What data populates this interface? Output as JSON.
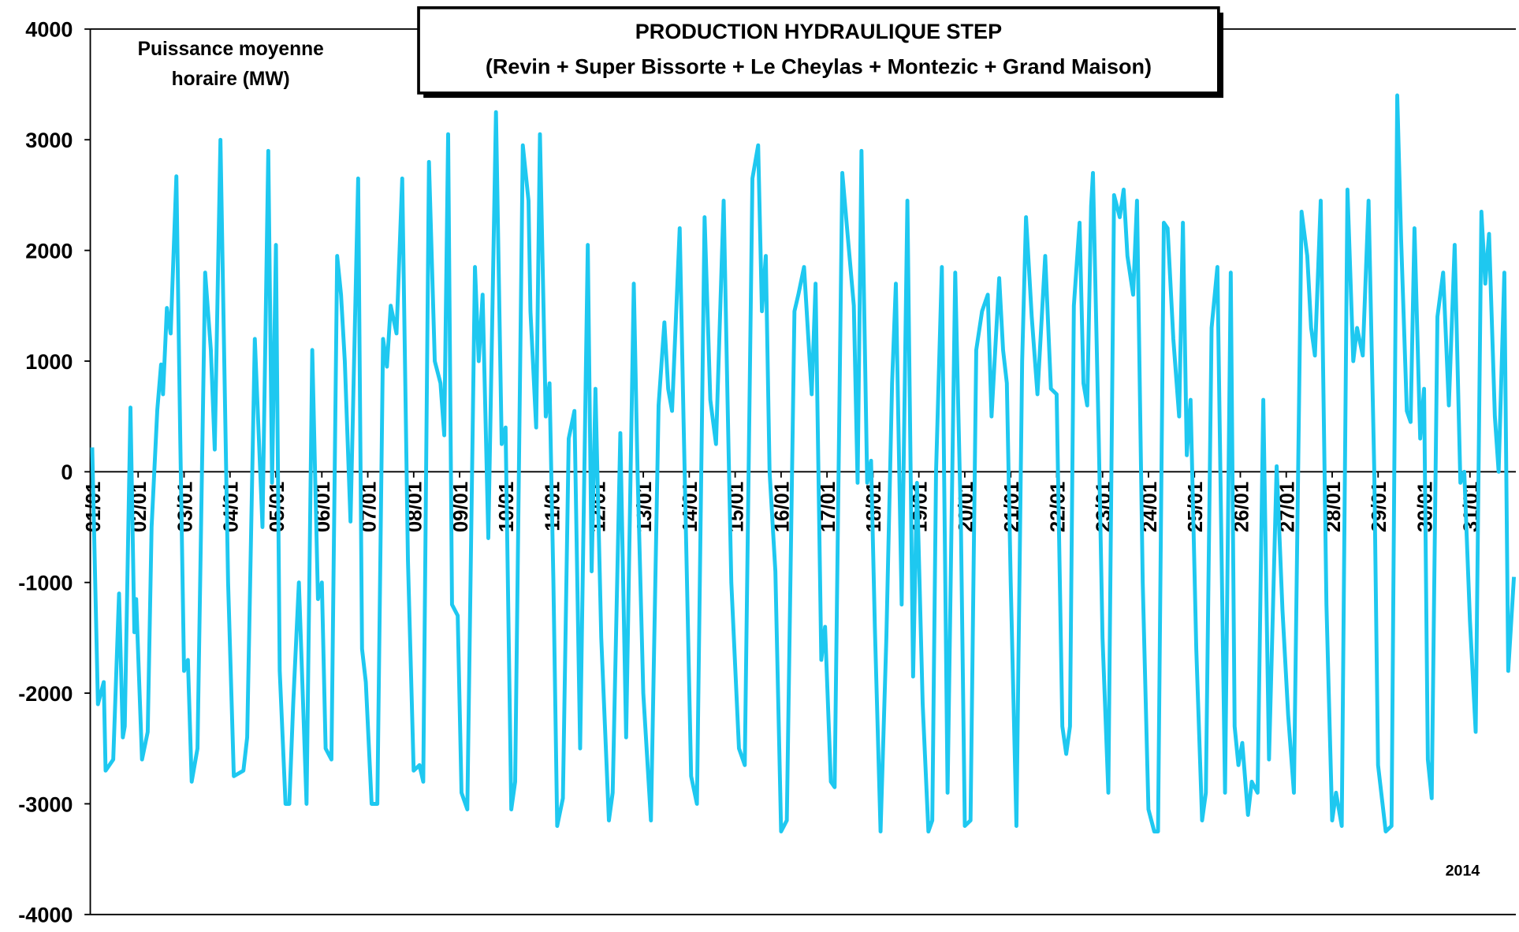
{
  "chart_data": {
    "type": "line",
    "title": "PRODUCTION HYDRAULIQUE STEP",
    "subtitle": "(Revin + Super Bissorte + Le Cheylas + Montezic + Grand Maison)",
    "ylabel_lines": [
      "Puissance moyenne",
      "horaire (MW)"
    ],
    "annotation": "2014",
    "xlim": [
      0,
      744
    ],
    "ylim": [
      -4000,
      4000
    ],
    "yticks": [
      -4000,
      -3000,
      -2000,
      -1000,
      0,
      1000,
      2000,
      3000,
      4000
    ],
    "xticks": [
      {
        "value": 0,
        "label": "01/01"
      },
      {
        "value": 24,
        "label": "02/01"
      },
      {
        "value": 48,
        "label": "03/01"
      },
      {
        "value": 72,
        "label": "04/01"
      },
      {
        "value": 96,
        "label": "05/01"
      },
      {
        "value": 120,
        "label": "06/01"
      },
      {
        "value": 144,
        "label": "07/01"
      },
      {
        "value": 168,
        "label": "08/01"
      },
      {
        "value": 192,
        "label": "09/01"
      },
      {
        "value": 216,
        "label": "10/01"
      },
      {
        "value": 240,
        "label": "11/01"
      },
      {
        "value": 264,
        "label": "12/01"
      },
      {
        "value": 288,
        "label": "13/01"
      },
      {
        "value": 312,
        "label": "14/01"
      },
      {
        "value": 336,
        "label": "15/01"
      },
      {
        "value": 360,
        "label": "16/01"
      },
      {
        "value": 384,
        "label": "17/01"
      },
      {
        "value": 408,
        "label": "18/01"
      },
      {
        "value": 432,
        "label": "19/01"
      },
      {
        "value": 456,
        "label": "20/01"
      },
      {
        "value": 480,
        "label": "21/01"
      },
      {
        "value": 504,
        "label": "22/01"
      },
      {
        "value": 528,
        "label": "23/01"
      },
      {
        "value": 552,
        "label": "24/01"
      },
      {
        "value": 576,
        "label": "25/01"
      },
      {
        "value": 600,
        "label": "26/01"
      },
      {
        "value": 624,
        "label": "27/01"
      },
      {
        "value": 648,
        "label": "28/01"
      },
      {
        "value": 672,
        "label": "29/01"
      },
      {
        "value": 696,
        "label": "30/01"
      },
      {
        "value": 720,
        "label": "31/01"
      }
    ],
    "grid": false,
    "series": [
      {
        "color": "#1ec8f0",
        "x": [
          0,
          3,
          6,
          7,
          11,
          14,
          16,
          17,
          20,
          22,
          23,
          26,
          29,
          31,
          34,
          36,
          37,
          39,
          41,
          44,
          46,
          48,
          50,
          52,
          55,
          59,
          62,
          64,
          67,
          71,
          74,
          79,
          81,
          85,
          89,
          92,
          94,
          96,
          98,
          101,
          103,
          105,
          108,
          112,
          115,
          118,
          120,
          122,
          125,
          128,
          130,
          132,
          135,
          139,
          141,
          143,
          146,
          149,
          152,
          154,
          156,
          159,
          162,
          165,
          168,
          171,
          173,
          176,
          179,
          182,
          184,
          186,
          188,
          191,
          193,
          196,
          200,
          202,
          204,
          207,
          211,
          214,
          216,
          219,
          221,
          225,
          228,
          229,
          232,
          234,
          237,
          239,
          241,
          243,
          246,
          249,
          252,
          255,
          259,
          261,
          263,
          266,
          270,
          272,
          276,
          279,
          283,
          285,
          288,
          292,
          296,
          299,
          301,
          303,
          307,
          309,
          313,
          316,
          320,
          323,
          326,
          330,
          332,
          334,
          338,
          341,
          345,
          348,
          350,
          352,
          354,
          357,
          360,
          363,
          367,
          369,
          372,
          376,
          378,
          381,
          383,
          386,
          388,
          392,
          395,
          398,
          400,
          402,
          405,
          407,
          409,
          412,
          415,
          418,
          420,
          423,
          426,
          429,
          431,
          434,
          437,
          439,
          441,
          444,
          447,
          451,
          454,
          456,
          459,
          462,
          465,
          468,
          470,
          474,
          476,
          478,
          480,
          483,
          486,
          488,
          491,
          494,
          498,
          501,
          504,
          507,
          509,
          511,
          513,
          516,
          518,
          520,
          522,
          523,
          526,
          528,
          531,
          534,
          537,
          539,
          541,
          544,
          546,
          549,
          552,
          555,
          557,
          560,
          562,
          565,
          568,
          570,
          572,
          574,
          577,
          580,
          582,
          585,
          588,
          592,
          595,
          597,
          599,
          601,
          604,
          606,
          609,
          612,
          615,
          619,
          622,
          625,
          628,
          632,
          635,
          637,
          639,
          642,
          645,
          648,
          650,
          653,
          656,
          659,
          661,
          664,
          667,
          670,
          672,
          676,
          679,
          682,
          684,
          687,
          689,
          691,
          694,
          696,
          698,
          700,
          703,
          706,
          709,
          712,
          715,
          717,
          720,
          723,
          726,
          728,
          730,
          733,
          735,
          738,
          740,
          743
        ],
        "values": [
          220,
          -2100,
          -1900,
          -2700,
          -2600,
          -1100,
          -2400,
          -2300,
          580,
          -1450,
          -1150,
          -2600,
          -2350,
          -500,
          560,
          970,
          700,
          1480,
          1250,
          2670,
          300,
          -1800,
          -1700,
          -2800,
          -2500,
          1800,
          1100,
          200,
          3000,
          -1000,
          -2750,
          -2700,
          -2400,
          1200,
          -500,
          2900,
          -100,
          2050,
          -1800,
          -3000,
          -3000,
          -2100,
          -1000,
          -3000,
          1100,
          -1150,
          -1000,
          -2500,
          -2600,
          1950,
          1600,
          1000,
          -450,
          2650,
          -1600,
          -1900,
          -3000,
          -3000,
          1200,
          950,
          1500,
          1250,
          2650,
          -800,
          -2700,
          -2650,
          -2800,
          2800,
          1000,
          800,
          330,
          3050,
          -1200,
          -1300,
          -2900,
          -3050,
          1850,
          1000,
          1600,
          -600,
          3250,
          250,
          400,
          -3050,
          -2800,
          2950,
          2450,
          1450,
          400,
          3050,
          500,
          800,
          -1000,
          -3200,
          -2950,
          300,
          550,
          -2500,
          2050,
          -900,
          750,
          -1500,
          -3150,
          -2900,
          350,
          -2400,
          1700,
          0,
          -2000,
          -3150,
          600,
          1350,
          750,
          550,
          2200,
          500,
          -2750,
          -3000,
          2300,
          650,
          250,
          2450,
          650,
          -1000,
          -2500,
          -2650,
          2650,
          2950,
          1450,
          1950,
          0,
          -900,
          -3250,
          -3150,
          1450,
          1600,
          1850,
          700,
          1700,
          -1700,
          -1400,
          -2800,
          -2850,
          2700,
          2100,
          1500,
          -100,
          2900,
          -100,
          100,
          -1400,
          -3250,
          -1500,
          800,
          1700,
          -1200,
          2450,
          -1850,
          -100,
          -2100,
          -3250,
          -3150,
          0,
          1850,
          -2900,
          1800,
          -500,
          -3200,
          -3150,
          1100,
          1450,
          1600,
          500,
          1750,
          1100,
          800,
          -1000,
          -3200,
          1000,
          2300,
          1400,
          700,
          1950,
          750,
          700,
          -2300,
          -2550,
          -2300,
          1500,
          2250,
          800,
          600,
          2400,
          2700,
          300,
          -1500,
          -2900,
          2500,
          2300,
          2550,
          1950,
          1600,
          2450,
          -1000,
          -3050,
          -3250,
          -3250,
          2250,
          2200,
          1200,
          500,
          2250,
          150,
          650,
          -1600,
          -3150,
          -2900,
          1300,
          1850,
          -2900,
          1800,
          -2300,
          -2650,
          -2450,
          -3100,
          -2800,
          -2900,
          650,
          -2600,
          50,
          -1250,
          -2200,
          -2900,
          2350,
          1950,
          1300,
          1050,
          2450,
          -1200,
          -3150,
          -2900,
          -3200,
          2550,
          1000,
          1300,
          1050,
          2450,
          0,
          -2650,
          -3250,
          -3200,
          3400,
          2100,
          550,
          450,
          2200,
          300,
          750,
          -2600,
          -2950,
          1400,
          1800,
          600,
          2050,
          -100,
          0,
          -1350,
          -2350,
          2350,
          1700,
          2150,
          500,
          0,
          1800,
          -1800,
          -950
        ]
      }
    ]
  }
}
